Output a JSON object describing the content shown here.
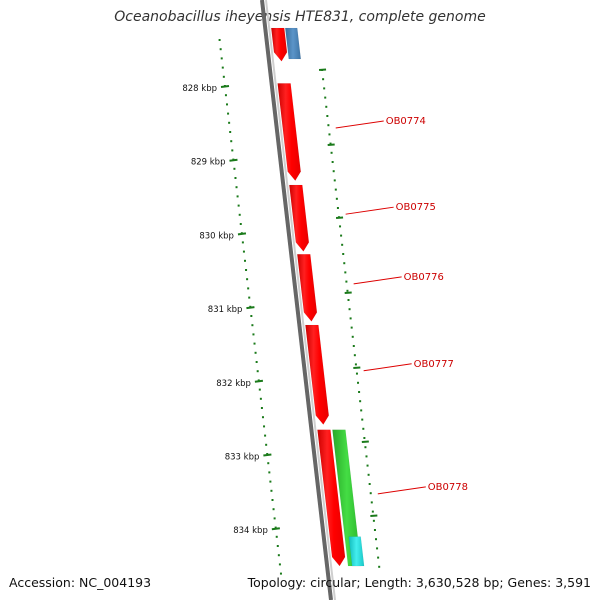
{
  "title": "Oceanobacillus iheyensis HTE831, complete genome",
  "footer": {
    "accession": "Accession: NC_004193",
    "summary": "Topology: circular; Length: 3,630,528 bp; Genes: 3,591"
  },
  "ticks": [
    {
      "kbp": 828,
      "label": "828 kbp"
    },
    {
      "kbp": 829,
      "label": "829 kbp"
    },
    {
      "kbp": 830,
      "label": "830 kbp"
    },
    {
      "kbp": 831,
      "label": "831 kbp"
    },
    {
      "kbp": 832,
      "label": "832 kbp"
    },
    {
      "kbp": 833,
      "label": "833 kbp"
    },
    {
      "kbp": 834,
      "label": "834 kbp"
    }
  ],
  "genes": [
    {
      "name": "",
      "start_kbp": 827.2,
      "end_kbp": 827.65,
      "strand": "forward",
      "track": "red",
      "color": "#ff0000"
    },
    {
      "name": "",
      "start_kbp": 827.2,
      "end_kbp": 827.62,
      "strand": "reverse",
      "track": "blue",
      "color": "#4f86b6"
    },
    {
      "name": "OB0774",
      "start_kbp": 827.95,
      "end_kbp": 829.27,
      "strand": "forward",
      "track": "red",
      "color": "#ff0000"
    },
    {
      "name": "OB0775",
      "start_kbp": 829.33,
      "end_kbp": 830.23,
      "strand": "forward",
      "track": "red",
      "color": "#ff0000"
    },
    {
      "name": "OB0776",
      "start_kbp": 830.27,
      "end_kbp": 831.18,
      "strand": "forward",
      "track": "red",
      "color": "#ff0000"
    },
    {
      "name": "OB0777",
      "start_kbp": 831.23,
      "end_kbp": 832.58,
      "strand": "forward",
      "track": "red",
      "color": "#ff0000"
    },
    {
      "name": "OB0778",
      "start_kbp": 832.65,
      "end_kbp": 834.5,
      "strand": "forward",
      "track": "red",
      "color": "#ff0000"
    },
    {
      "name": "",
      "start_kbp": 832.65,
      "end_kbp": 834.5,
      "strand": "reverse",
      "track": "green",
      "color": "#33cc33"
    },
    {
      "name": "",
      "start_kbp": 834.1,
      "end_kbp": 834.5,
      "strand": "reverse",
      "track": "cyan",
      "color": "#22dddd"
    }
  ],
  "colors": {
    "backbone": "#777777",
    "tick": "#1a7a1a",
    "label_line": "#dd0000"
  }
}
